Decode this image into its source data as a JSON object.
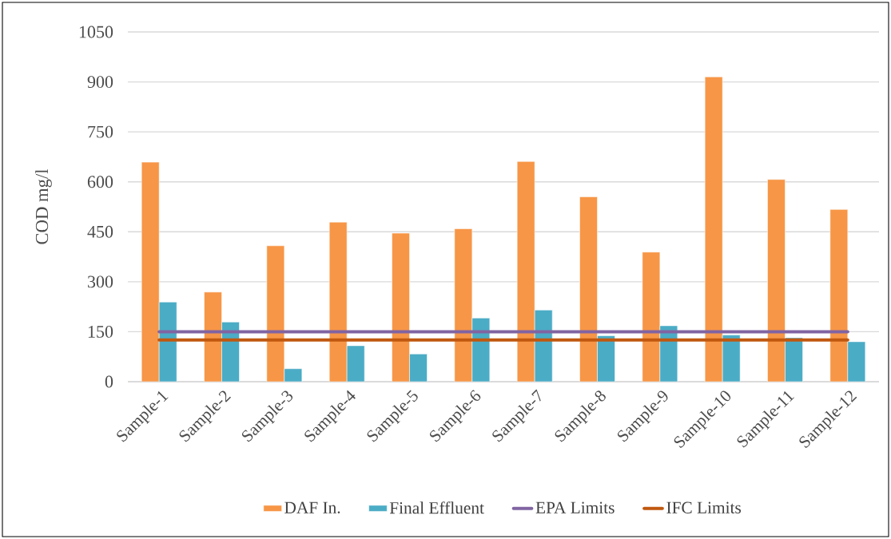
{
  "chart_data": {
    "type": "bar",
    "categories": [
      "Sample-1",
      "Sample-2",
      "Sample-3",
      "Sample-4",
      "Sample-5",
      "Sample-6",
      "Sample-7",
      "Sample-8",
      "Sample-9",
      "Sample-10",
      "Sample-11",
      "Sample-12"
    ],
    "series": [
      {
        "name": "DAF In.",
        "color": "#f79646",
        "values": [
          659,
          269,
          408,
          479,
          446,
          459,
          661,
          555,
          389,
          915,
          607,
          517
        ]
      },
      {
        "name": "Final Effluent",
        "color": "#4bacc6",
        "values": [
          239,
          179,
          39,
          108,
          83,
          191,
          215,
          138,
          168,
          140,
          132,
          120
        ]
      },
      {
        "name": "EPA Limits",
        "type": "line",
        "color": "#8064a2",
        "values": [
          150,
          150,
          150,
          150,
          150,
          150,
          150,
          150,
          150,
          150,
          150,
          150
        ]
      },
      {
        "name": "IFC Limits",
        "type": "line",
        "color": "#c0580f",
        "values": [
          125,
          125,
          125,
          125,
          125,
          125,
          125,
          125,
          125,
          125,
          125,
          125
        ]
      }
    ],
    "ylabel": "COD mg/l",
    "ylim": [
      0,
      1050
    ],
    "yticks": [
      0,
      150,
      300,
      450,
      600,
      750,
      900,
      1050
    ],
    "grid": "y",
    "legend": "bottom"
  }
}
